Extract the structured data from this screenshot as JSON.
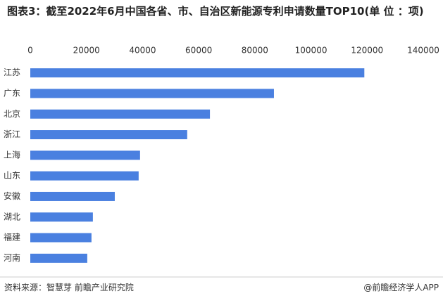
{
  "chart_data": {
    "type": "bar",
    "orientation": "horizontal",
    "title": "图表3：截至2022年6月中国各省、市、自治区新能源专利申请数量TOP10(单 位 ：项)",
    "categories": [
      "江苏",
      "广东",
      "北京",
      "浙江",
      "上海",
      "山东",
      "安徽",
      "湖北",
      "福建",
      "河南"
    ],
    "values": [
      119000,
      86800,
      64000,
      55900,
      39100,
      38600,
      30100,
      22300,
      21800,
      20300
    ],
    "color": "#4a80e0",
    "xlim": [
      0,
      140000
    ],
    "xticks": [
      0,
      20000,
      40000,
      60000,
      80000,
      100000,
      120000,
      140000
    ],
    "grid": false,
    "source": "资料来源：智慧芽 前瞻产业研究院",
    "credit": "@前瞻经济学人APP"
  }
}
